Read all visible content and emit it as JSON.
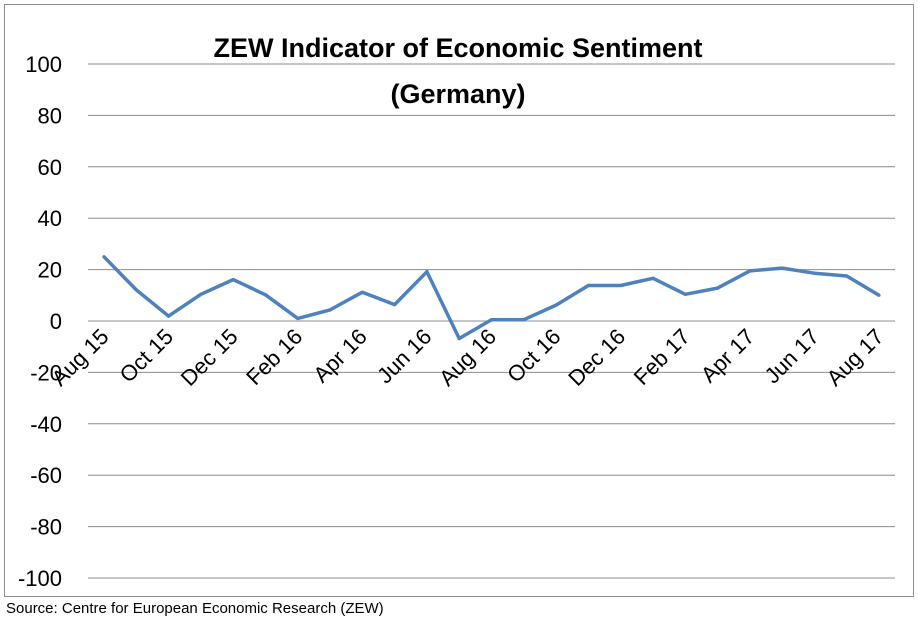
{
  "chart_data": {
    "type": "line",
    "title": "ZEW Indicator of Economic Sentiment",
    "subtitle": "(Germany)",
    "xlabel": "",
    "ylabel": "",
    "ylim": [
      -100,
      100
    ],
    "y_ticks": [
      100,
      80,
      60,
      40,
      20,
      0,
      -20,
      -40,
      -60,
      -80,
      -100
    ],
    "y_tick_labels": [
      "100",
      "80",
      "60",
      "40",
      "20",
      "0",
      "-20",
      "-40",
      "-60",
      "-80",
      "-100"
    ],
    "grid": true,
    "legend": "none",
    "x_tick_labels": [
      "Aug 15",
      "Oct 15",
      "Dec 15",
      "Feb 16",
      "Apr 16",
      "Jun 16",
      "Aug 16",
      "Oct 16",
      "Dec 16",
      "Feb 17",
      "Apr 17",
      "Jun 17",
      "Aug 17"
    ],
    "series": [
      {
        "name": "ZEW Indicator of Economic Sentiment",
        "color": "#4f81bd",
        "x": [
          "Aug 15",
          "Sep 15",
          "Oct 15",
          "Nov 15",
          "Dec 15",
          "Jan 16",
          "Feb 16",
          "Mar 16",
          "Apr 16",
          "May 16",
          "Jun 16",
          "Jul 16",
          "Aug 16",
          "Sep 16",
          "Oct 16",
          "Nov 16",
          "Dec 16",
          "Jan 17",
          "Feb 17",
          "Mar 17",
          "Apr 17",
          "May 17",
          "Jun 17",
          "Jul 17",
          "Aug 17"
        ],
        "values": [
          25,
          12.1,
          1.9,
          10.4,
          16.1,
          10.2,
          1.0,
          4.3,
          11.2,
          6.4,
          19.2,
          -6.8,
          0.5,
          0.5,
          6.2,
          13.8,
          13.8,
          16.6,
          10.4,
          12.8,
          19.5,
          20.6,
          18.6,
          17.5,
          10.0
        ]
      }
    ]
  },
  "source_note": "Source: Centre for European Economic Research (ZEW)"
}
